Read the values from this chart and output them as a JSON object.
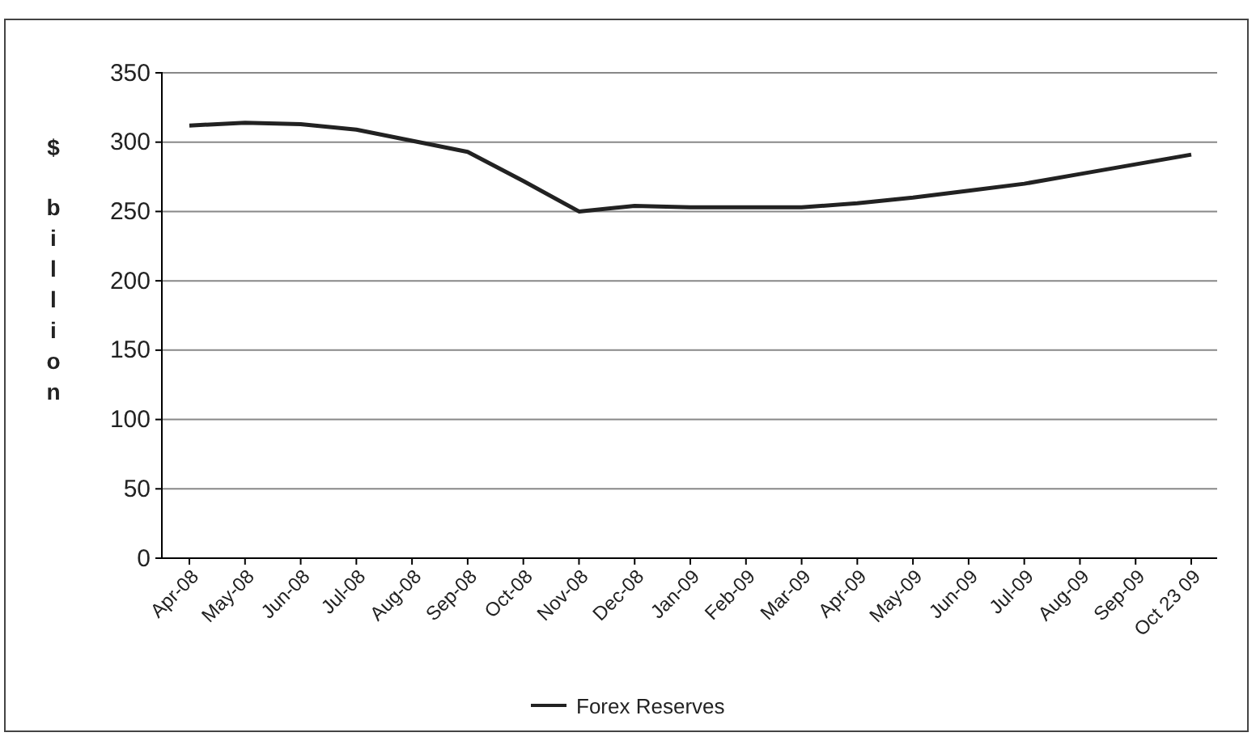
{
  "chart_data": {
    "type": "line",
    "ylabel": "$ billion",
    "categories": [
      "Apr-08",
      "May-08",
      "Jun-08",
      "Jul-08",
      "Aug-08",
      "Sep-08",
      "Oct-08",
      "Nov-08",
      "Dec-08",
      "Jan-09",
      "Feb-09",
      "Mar-09",
      "Apr-09",
      "May-09",
      "Jun-09",
      "Jul-09",
      "Aug-09",
      "Sep-09",
      "Oct 23 09"
    ],
    "series": [
      {
        "name": "Forex Reserves",
        "color": "#222222",
        "values": [
          312,
          314,
          313,
          309,
          301,
          293,
          272,
          250,
          254,
          253,
          253,
          253,
          256,
          260,
          265,
          270,
          277,
          284,
          291
        ]
      }
    ],
    "ylim": [
      0,
      350
    ],
    "yticks": [
      0,
      50,
      100,
      150,
      200,
      250,
      300,
      350
    ],
    "grid": "y",
    "legend": "bottom",
    "marker": "none",
    "line_style": "solid"
  }
}
